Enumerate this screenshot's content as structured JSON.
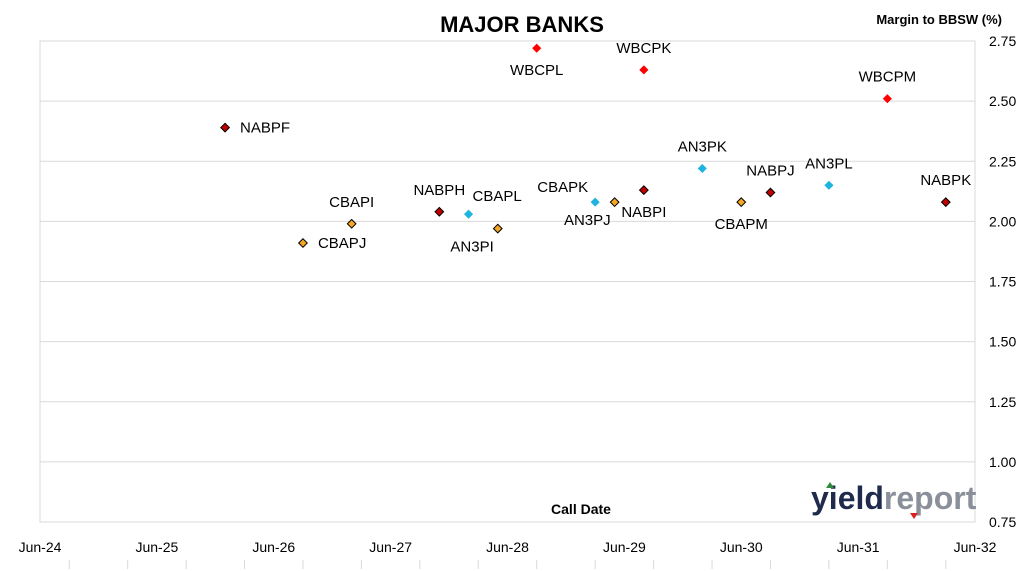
{
  "chart_data": {
    "type": "scatter",
    "title": "MAJOR BANKS",
    "ylabel": "Margin to BBSW (%)",
    "xlabel": "Call Date",
    "y_ticks": [
      "2.75",
      "2.50",
      "2.25",
      "2.00",
      "1.75",
      "1.50",
      "1.25",
      "1.00",
      "0.75"
    ],
    "x_ticks": [
      "Jun-24",
      "Jun-25",
      "Jun-26",
      "Jun-27",
      "Jun-28",
      "Jun-29",
      "Jun-30",
      "Jun-31",
      "Jun-32"
    ],
    "ylim": [
      0.75,
      2.75
    ],
    "xlim": [
      "2024-06",
      "2032-06"
    ],
    "grid": "horizontal",
    "points": [
      {
        "label": "NABPF",
        "x": "2026-01",
        "y": 2.39,
        "color": "#c00000",
        "outline": true,
        "label_pos": "right"
      },
      {
        "label": "CBAPJ",
        "x": "2026-09",
        "y": 1.91,
        "color": "#f5a623",
        "outline": true,
        "label_pos": "right"
      },
      {
        "label": "CBAPI",
        "x": "2027-02",
        "y": 1.99,
        "color": "#f5a623",
        "outline": true,
        "label_pos": "above"
      },
      {
        "label": "NABPH",
        "x": "2027-11",
        "y": 2.04,
        "color": "#c00000",
        "outline": true,
        "label_pos": "above"
      },
      {
        "label": "CBAPL",
        "x": "2028-02",
        "y": 2.03,
        "color": "#1fb3e0",
        "outline": false,
        "label_pos": "above-right"
      },
      {
        "label": "AN3PI",
        "x": "2028-05",
        "y": 1.97,
        "color": "#f5a623",
        "outline": true,
        "label_pos": "below-left"
      },
      {
        "label": "WBCPL",
        "x": "2028-09",
        "y": 2.72,
        "color": "#ff0000",
        "outline": false,
        "label_pos": "below"
      },
      {
        "label": "CBAPK",
        "x": "2029-03",
        "y": 2.08,
        "color": "#1fb3e0",
        "outline": false,
        "label_pos": "above-left"
      },
      {
        "label": "AN3PJ",
        "x": "2029-05",
        "y": 2.08,
        "color": "#f5a623",
        "outline": true,
        "label_pos": "below-left"
      },
      {
        "label": "NABPI",
        "x": "2029-08",
        "y": 2.13,
        "color": "#c00000",
        "outline": true,
        "label_pos": "below"
      },
      {
        "label": "WBCPK",
        "x": "2029-08",
        "y": 2.63,
        "color": "#ff0000",
        "outline": false,
        "label_pos": "above"
      },
      {
        "label": "AN3PK",
        "x": "2030-02",
        "y": 2.22,
        "color": "#1fb3e0",
        "outline": false,
        "label_pos": "above"
      },
      {
        "label": "CBAPM",
        "x": "2030-06",
        "y": 2.08,
        "color": "#f5a623",
        "outline": true,
        "label_pos": "below"
      },
      {
        "label": "NABPJ",
        "x": "2030-09",
        "y": 2.12,
        "color": "#c00000",
        "outline": true,
        "label_pos": "above"
      },
      {
        "label": "AN3PL",
        "x": "2031-03",
        "y": 2.15,
        "color": "#1fb3e0",
        "outline": false,
        "label_pos": "above"
      },
      {
        "label": "WBCPM",
        "x": "2031-09",
        "y": 2.51,
        "color": "#ff0000",
        "outline": false,
        "label_pos": "above"
      },
      {
        "label": "NABPK",
        "x": "2032-03",
        "y": 2.08,
        "color": "#c00000",
        "outline": true,
        "label_pos": "above"
      }
    ]
  },
  "logo": {
    "part1": "yield",
    "part2": "report",
    "arrow_up_color": "#2e8b3a",
    "arrow_down_color": "#e02020"
  }
}
